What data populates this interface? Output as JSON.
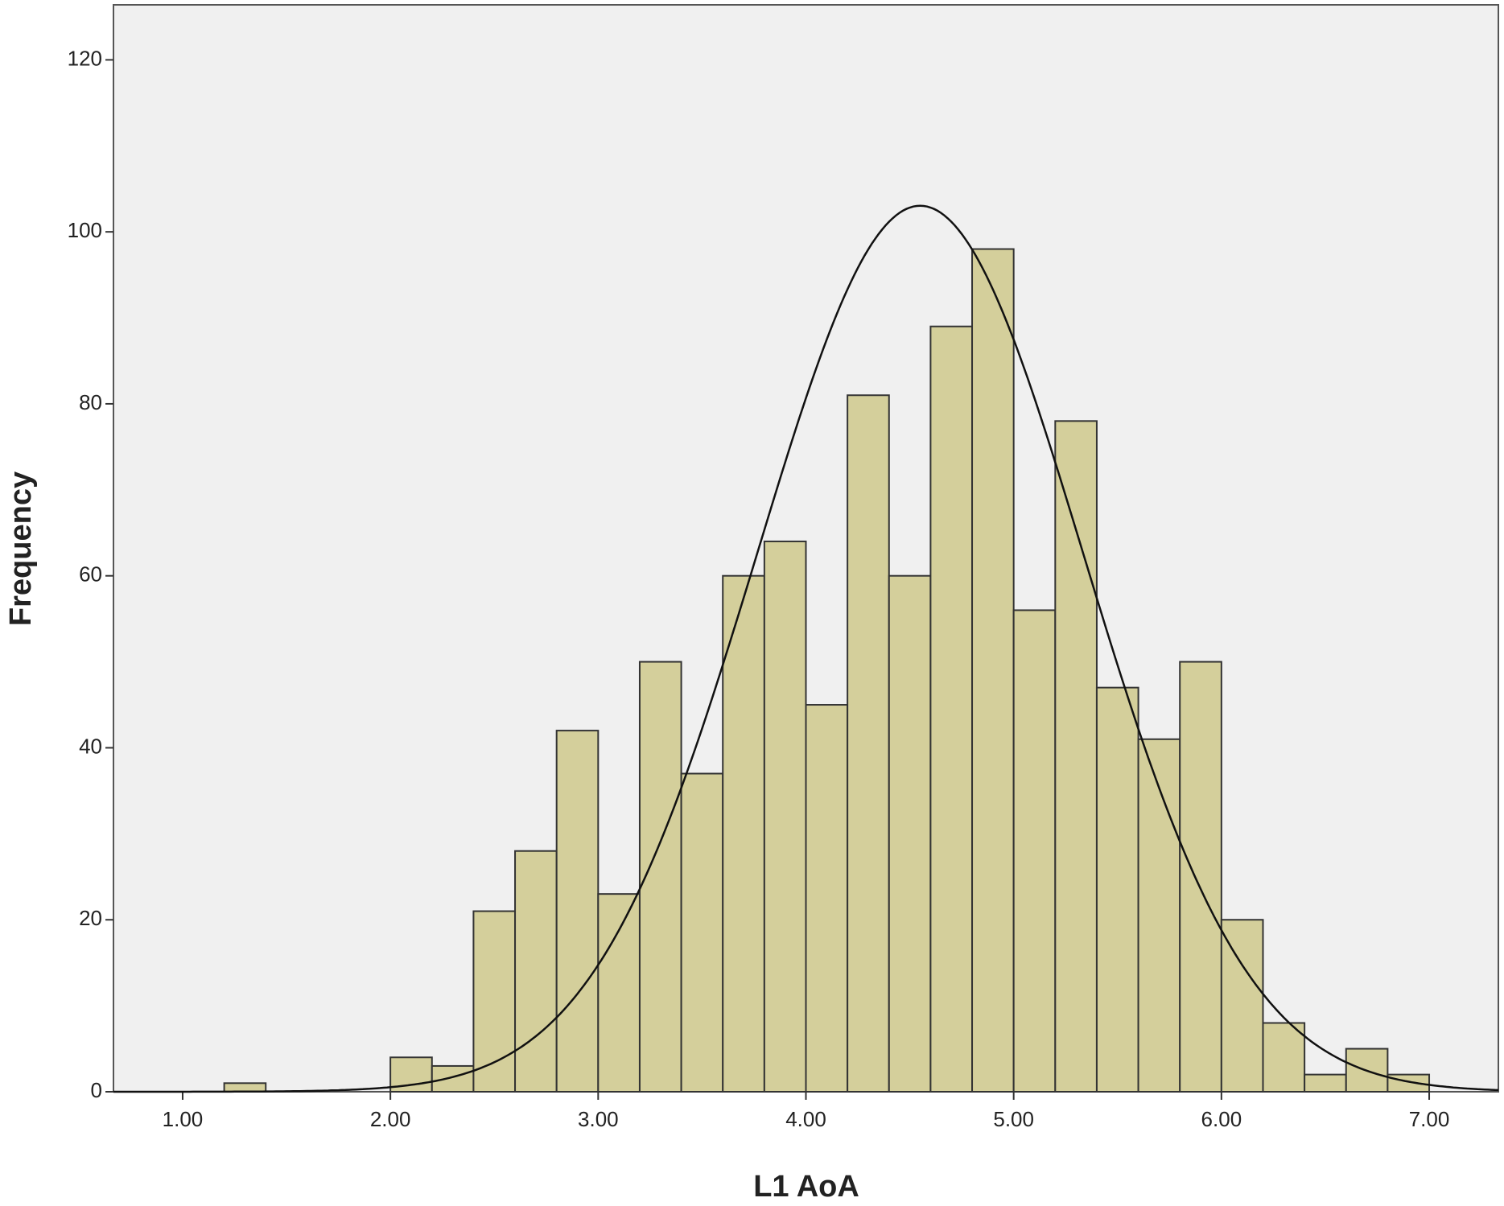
{
  "chart_data": {
    "type": "histogram",
    "x_label": "L1 AoA",
    "y_label": "Frequency",
    "bins": [
      1.2,
      1.4,
      1.6,
      1.8,
      2.0,
      2.2,
      2.4,
      2.6,
      2.8,
      3.0,
      3.2,
      3.4,
      3.6,
      3.8,
      4.0,
      4.2,
      4.4,
      4.6,
      4.8,
      5.0,
      5.2,
      5.4,
      5.6,
      5.8,
      6.0,
      6.2,
      6.4,
      6.6,
      6.8,
      7.0
    ],
    "counts": [
      1,
      0,
      0,
      0,
      4,
      3,
      21,
      28,
      42,
      23,
      50,
      37,
      60,
      64,
      45,
      81,
      60,
      89,
      98,
      56,
      78,
      47,
      41,
      50,
      20,
      8,
      2,
      5,
      2
    ],
    "color": "#d4cf9b",
    "normal_curve": {
      "mean": 4.55,
      "sd": 0.786
    },
    "xlim": [
      0.667,
      7.333
    ],
    "xticks": [
      {
        "value": 1,
        "label": "1.00"
      },
      {
        "value": 2,
        "label": "2.00"
      },
      {
        "value": 3,
        "label": "3.00"
      },
      {
        "value": 4,
        "label": "4.00"
      },
      {
        "value": 5,
        "label": "5.00"
      },
      {
        "value": 6,
        "label": "6.00"
      },
      {
        "value": 7,
        "label": "7.00"
      }
    ],
    "ylim": [
      0,
      126.4
    ],
    "yticks": [
      0,
      20,
      40,
      60,
      80,
      100,
      120
    ],
    "grid": false
  }
}
